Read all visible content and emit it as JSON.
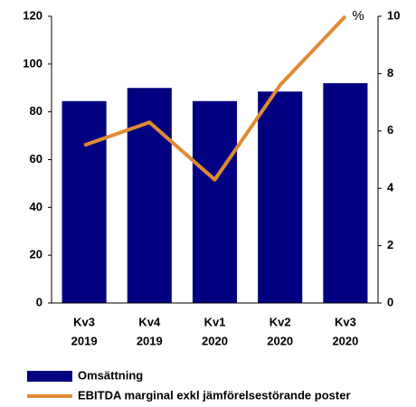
{
  "chart_data": {
    "type": "bar",
    "categories": [
      [
        "Kv3",
        "2019"
      ],
      [
        "Kv4",
        "2019"
      ],
      [
        "Kv1",
        "2020"
      ],
      [
        "Kv2",
        "2020"
      ],
      [
        "Kv3",
        "2020"
      ]
    ],
    "series": [
      {
        "name": "Omsättning",
        "type": "bar",
        "color": "#000080",
        "values": [
          84.5,
          90,
          84.5,
          88.5,
          92
        ]
      },
      {
        "name": "EBITDA marginal exkl jämförelsestörande poster",
        "type": "line",
        "axis": "y2",
        "color": "#e08a34",
        "values": [
          5.5,
          6.3,
          4.3,
          7.6,
          10.0
        ]
      }
    ],
    "ylim": [
      0,
      120
    ],
    "yticks": [
      0,
      20,
      40,
      60,
      80,
      100,
      120
    ],
    "y2lim": [
      0,
      10
    ],
    "y2ticks": [
      0,
      2,
      4,
      6,
      8,
      10
    ],
    "y2label": "%",
    "grid": false
  }
}
